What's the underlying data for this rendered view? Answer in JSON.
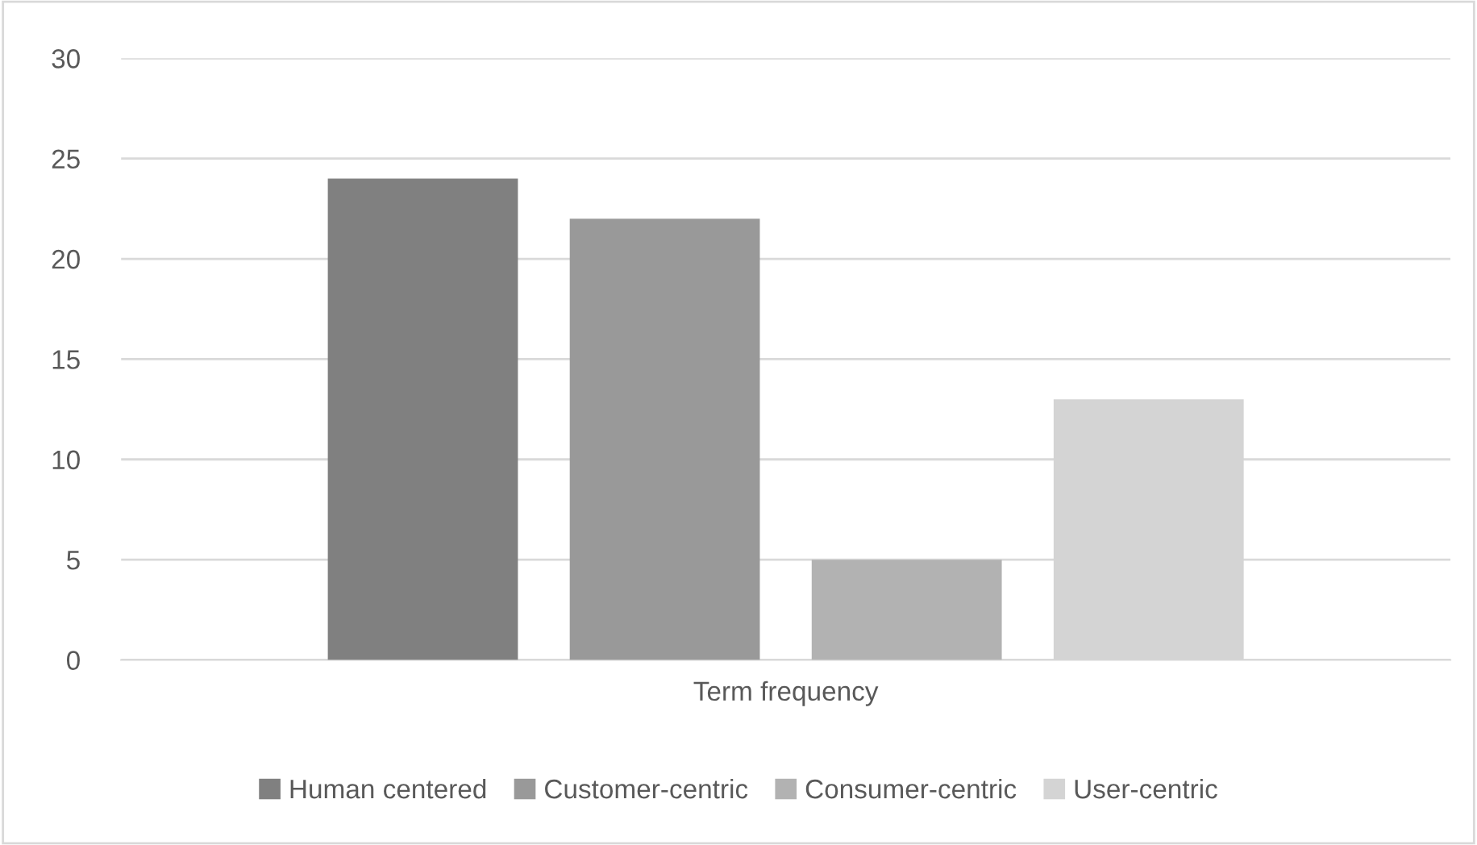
{
  "chart_data": {
    "type": "bar",
    "xlabel": "Term frequency",
    "categories": [
      null
    ],
    "series": [
      {
        "name": "Human centered",
        "color": "#808080",
        "values": [
          24
        ]
      },
      {
        "name": "Customer-centric",
        "color": "#999999",
        "values": [
          22
        ]
      },
      {
        "name": "Consumer-centric",
        "color": "#b2b2b2",
        "values": [
          5
        ]
      },
      {
        "name": "User-centric",
        "color": "#d4d4d4",
        "values": [
          13
        ]
      }
    ],
    "ylim": [
      0,
      30
    ],
    "yticks": [
      0,
      5,
      10,
      15,
      20,
      25,
      30
    ],
    "grid": "y",
    "legend": "bottom"
  }
}
